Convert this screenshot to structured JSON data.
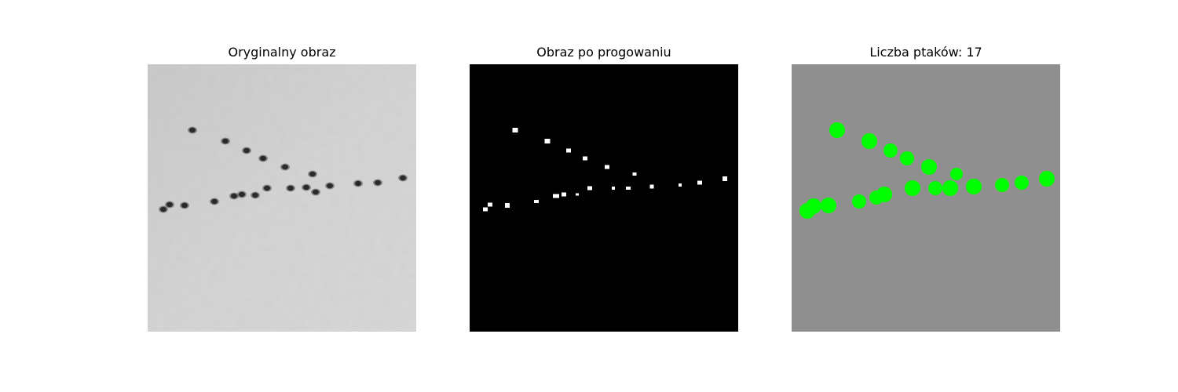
{
  "panels": [
    {
      "title": "Oryginalny obraz"
    },
    {
      "title": "Obraz po progowaniu"
    },
    {
      "title": "Liczba ptaków: 17"
    }
  ],
  "colors": {
    "original_bg": "#d2d2d2",
    "bird_dark": "#2a2a2a",
    "threshold_bg": "#000000",
    "threshold_blob": "#ffffff",
    "result_bg": "#8f8f8f",
    "detection": "#00ff00"
  }
}
